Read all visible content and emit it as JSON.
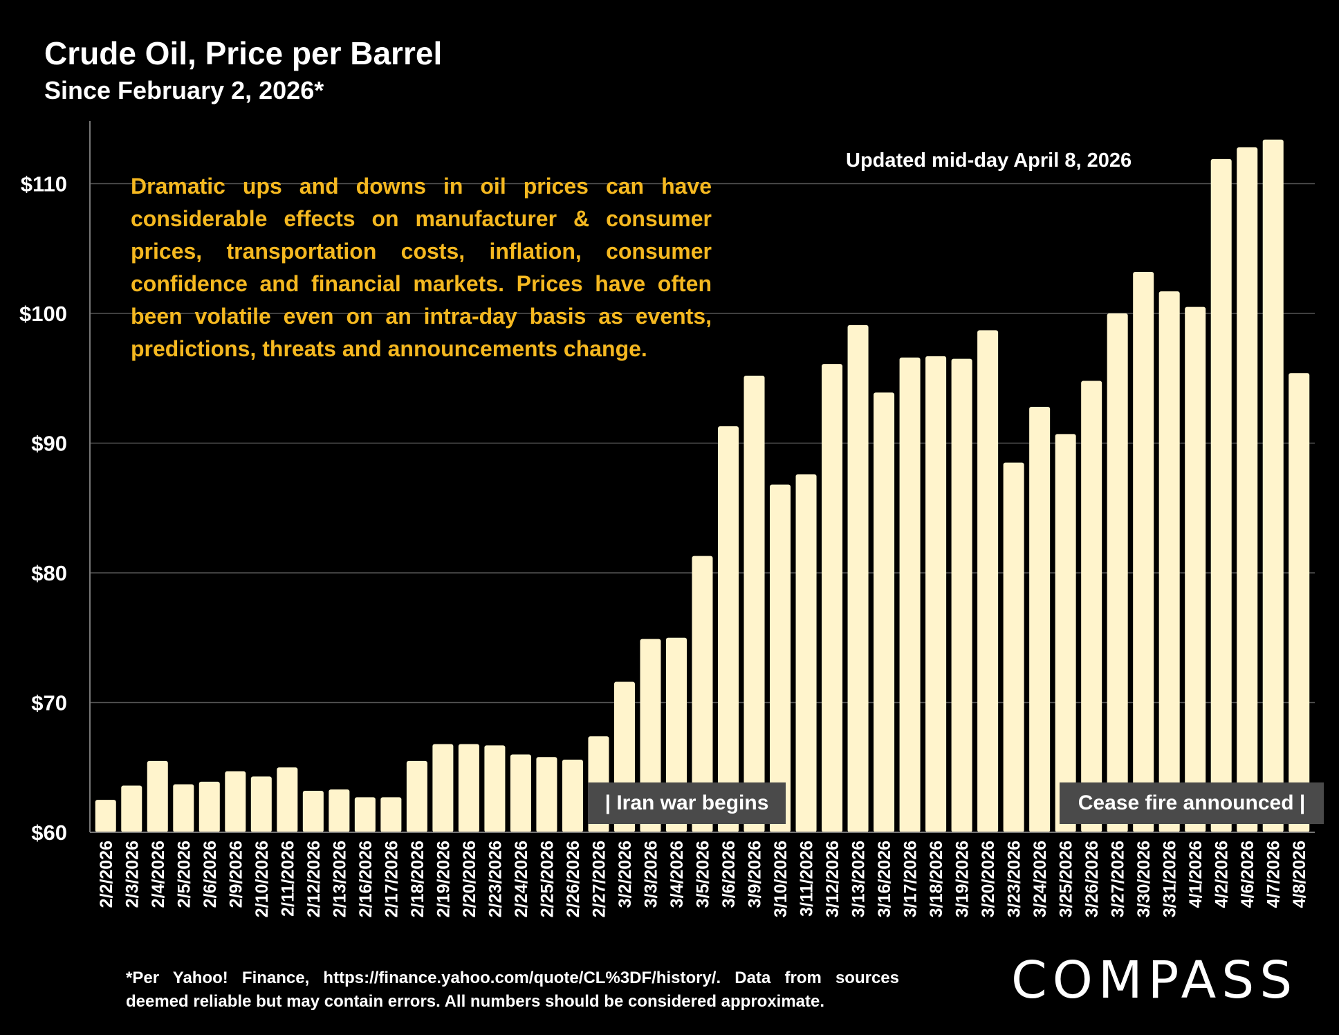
{
  "header": {
    "title": "Crude Oil, Price per Barrel",
    "subtitle": "Since February 2, 2026*"
  },
  "commentary": "Dramatic ups and downs in oil prices can have considerable effects on manufacturer & consumer prices, transportation costs, inflation, consumer confidence and financial markets. Prices have often been volatile even on an intra-day basis as events, predictions, threats and announcements change.",
  "updated_note": "Updated mid-day April 8, 2026",
  "events": {
    "iran_war": "| Iran war begins",
    "cease_fire": "Cease fire announced |"
  },
  "footnote": "*Per Yahoo! Finance, https://finance.yahoo.com/quote/CL%3DF/history/. Data from sources deemed reliable but may contain errors. All numbers should be considered approximate.",
  "logo": "COMPASS",
  "colors": {
    "background": "#000000",
    "bar": "#fff4cc",
    "commentary_text": "#f5b820",
    "event_box": "#4a4a4a",
    "grid": "#555555"
  },
  "chart_data": {
    "type": "bar",
    "title": "Crude Oil, Price per Barrel",
    "subtitle": "Since February 2, 2026*",
    "xlabel": "",
    "ylabel": "",
    "ylim": [
      60,
      115
    ],
    "yticks": [
      60,
      70,
      80,
      90,
      100,
      110
    ],
    "ytick_labels": [
      "$60",
      "$70",
      "$80",
      "$90",
      "$100",
      "$110"
    ],
    "grid": true,
    "categories": [
      "2/2/2026",
      "2/3/2026",
      "2/4/2026",
      "2/5/2026",
      "2/6/2026",
      "2/9/2026",
      "2/10/2026",
      "2/11/2026",
      "2/12/2026",
      "2/13/2026",
      "2/16/2026",
      "2/17/2026",
      "2/18/2026",
      "2/19/2026",
      "2/20/2026",
      "2/23/2026",
      "2/24/2026",
      "2/25/2026",
      "2/26/2026",
      "2/27/2026",
      "3/2/2026",
      "3/3/2026",
      "3/4/2026",
      "3/5/2026",
      "3/6/2026",
      "3/9/2026",
      "3/10/2026",
      "3/11/2026",
      "3/12/2026",
      "3/13/2026",
      "3/16/2026",
      "3/17/2026",
      "3/18/2026",
      "3/19/2026",
      "3/20/2026",
      "3/23/2026",
      "3/24/2026",
      "3/25/2026",
      "3/26/2026",
      "3/27/2026",
      "3/30/2026",
      "3/31/2026",
      "4/1/2026",
      "4/2/2026",
      "4/6/2026",
      "4/7/2026",
      "4/8/2026"
    ],
    "values": [
      62.5,
      63.6,
      65.5,
      63.7,
      63.9,
      64.7,
      64.3,
      65.0,
      63.2,
      63.3,
      62.7,
      62.7,
      65.5,
      66.8,
      66.8,
      66.7,
      66.0,
      65.8,
      65.6,
      67.4,
      71.6,
      74.9,
      75.0,
      81.3,
      91.3,
      95.2,
      86.8,
      87.6,
      96.1,
      99.1,
      93.9,
      96.6,
      96.7,
      96.5,
      98.7,
      88.5,
      92.8,
      90.7,
      94.8,
      100.0,
      103.2,
      101.7,
      100.5,
      111.9,
      112.8,
      113.4,
      95.4
    ]
  }
}
